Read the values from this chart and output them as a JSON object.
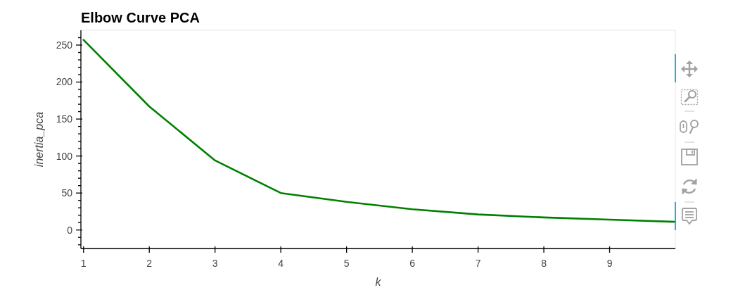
{
  "chart_data": {
    "type": "line",
    "title": "Elbow Curve PCA",
    "xlabel": "k",
    "ylabel": "inertia_pca",
    "x": [
      1,
      2,
      3,
      4,
      5,
      6,
      7,
      8,
      9,
      10
    ],
    "series": [
      {
        "color": "#008000",
        "values": [
          257,
          167,
          94,
          50,
          38,
          28,
          21,
          17,
          14,
          11
        ]
      }
    ],
    "xlim": [
      0.96,
      10
    ],
    "ylim": [
      -25,
      270
    ],
    "xticks": [
      1,
      2,
      3,
      4,
      5,
      6,
      7,
      8,
      9
    ],
    "yticks": [
      {
        "value": -20,
        "label": null
      },
      {
        "value": -10,
        "label": null
      },
      0,
      {
        "value": 10,
        "label": null
      },
      {
        "value": 20,
        "label": null
      },
      {
        "value": 30,
        "label": null
      },
      {
        "value": 40,
        "label": null
      },
      50,
      {
        "value": 60,
        "label": null
      },
      {
        "value": 70,
        "label": null
      },
      {
        "value": 80,
        "label": null
      },
      {
        "value": 90,
        "label": null
      },
      100,
      {
        "value": 110,
        "label": null
      },
      {
        "value": 120,
        "label": null
      },
      {
        "value": 130,
        "label": null
      },
      {
        "value": 140,
        "label": null
      },
      150,
      {
        "value": 160,
        "label": null
      },
      {
        "value": 170,
        "label": null
      },
      {
        "value": 180,
        "label": null
      },
      {
        "value": 190,
        "label": null
      },
      200,
      {
        "value": 210,
        "label": null
      },
      {
        "value": 220,
        "label": null
      },
      {
        "value": 230,
        "label": null
      },
      {
        "value": 240,
        "label": null
      },
      250,
      {
        "value": 260,
        "label": null
      }
    ]
  }
}
